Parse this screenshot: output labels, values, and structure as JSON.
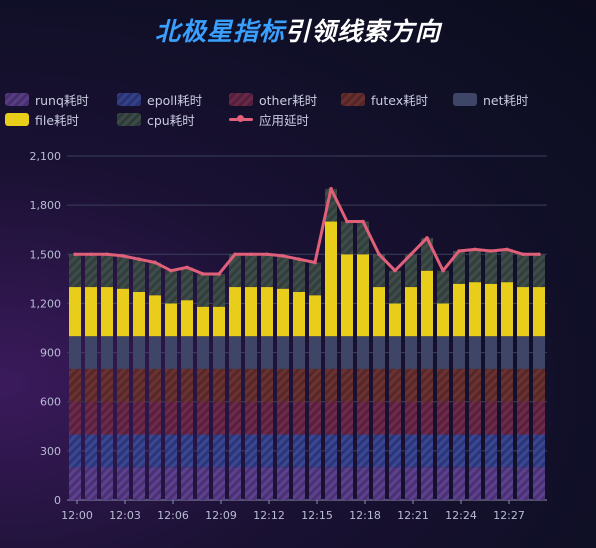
{
  "title": {
    "part1": "北极星指标",
    "part2": "引领线索方向"
  },
  "colors": {
    "runq": "#5a3b86",
    "epoll": "#34408a",
    "other": "#6a2848",
    "futex": "#6a3030",
    "net": "#3e4566",
    "file": "#e8ce1a",
    "cpu": "#3c4a48",
    "latency": "#e0607a"
  },
  "chart_data": {
    "type": "bar",
    "title": "北极星指标引领线索方向",
    "x": [
      "12:00",
      "12:01",
      "12:02",
      "12:03",
      "12:04",
      "12:05",
      "12:06",
      "12:07",
      "12:08",
      "12:09",
      "12:10",
      "12:11",
      "12:12",
      "12:13",
      "12:14",
      "12:15",
      "12:16",
      "12:17",
      "12:18",
      "12:19",
      "12:20",
      "12:21",
      "12:22",
      "12:23",
      "12:24",
      "12:25",
      "12:26",
      "12:27",
      "12:28",
      "12:29"
    ],
    "x_tick_labels": [
      "12:00",
      "12:03",
      "12:06",
      "12:09",
      "12:12",
      "12:15",
      "12:18",
      "12:21",
      "12:24",
      "12:27"
    ],
    "y_ticks": [
      "0",
      "300",
      "600",
      "900",
      "1,200",
      "1,500",
      "1,800",
      "2,100"
    ],
    "ylim": [
      0,
      2100
    ],
    "grid": true,
    "legend_position": "top",
    "series": [
      {
        "key": "runq",
        "name": "runq耗时",
        "values": [
          200,
          200,
          200,
          200,
          200,
          200,
          200,
          200,
          200,
          200,
          200,
          200,
          200,
          200,
          200,
          200,
          200,
          200,
          200,
          200,
          200,
          200,
          200,
          200,
          200,
          200,
          200,
          200,
          200,
          200
        ]
      },
      {
        "key": "epoll",
        "name": "epoll耗时",
        "values": [
          200,
          200,
          200,
          200,
          200,
          200,
          200,
          200,
          200,
          200,
          200,
          200,
          200,
          200,
          200,
          200,
          200,
          200,
          200,
          200,
          200,
          200,
          200,
          200,
          200,
          200,
          200,
          200,
          200,
          200
        ]
      },
      {
        "key": "other",
        "name": "other耗时",
        "values": [
          200,
          200,
          200,
          200,
          200,
          200,
          200,
          200,
          200,
          200,
          200,
          200,
          200,
          200,
          200,
          200,
          200,
          200,
          200,
          200,
          200,
          200,
          200,
          200,
          200,
          200,
          200,
          200,
          200,
          200
        ]
      },
      {
        "key": "futex",
        "name": "futex耗时",
        "values": [
          200,
          200,
          200,
          200,
          200,
          200,
          200,
          200,
          200,
          200,
          200,
          200,
          200,
          200,
          200,
          200,
          200,
          200,
          200,
          200,
          200,
          200,
          200,
          200,
          200,
          200,
          200,
          200,
          200,
          200
        ]
      },
      {
        "key": "net",
        "name": "net耗时",
        "values": [
          200,
          200,
          200,
          200,
          200,
          200,
          200,
          200,
          200,
          200,
          200,
          200,
          200,
          200,
          200,
          200,
          200,
          200,
          200,
          200,
          200,
          200,
          200,
          200,
          200,
          200,
          200,
          200,
          200,
          200
        ]
      },
      {
        "key": "file",
        "name": "file耗时",
        "values": [
          300,
          300,
          300,
          290,
          270,
          250,
          200,
          220,
          180,
          180,
          300,
          300,
          300,
          290,
          270,
          250,
          700,
          500,
          500,
          300,
          200,
          300,
          400,
          200,
          320,
          330,
          320,
          330,
          300,
          300
        ]
      },
      {
        "key": "cpu",
        "name": "cpu耗时",
        "values": [
          200,
          200,
          200,
          200,
          200,
          200,
          200,
          200,
          200,
          200,
          200,
          200,
          200,
          200,
          200,
          200,
          200,
          200,
          200,
          200,
          200,
          200,
          200,
          200,
          200,
          200,
          200,
          200,
          200,
          200
        ]
      },
      {
        "key": "latency",
        "name": "应用延时",
        "type": "line",
        "values": [
          1500,
          1500,
          1500,
          1490,
          1470,
          1450,
          1400,
          1420,
          1380,
          1380,
          1500,
          1500,
          1500,
          1490,
          1470,
          1450,
          1900,
          1700,
          1700,
          1500,
          1400,
          1500,
          1600,
          1400,
          1520,
          1530,
          1520,
          1530,
          1500,
          1500
        ]
      }
    ]
  }
}
